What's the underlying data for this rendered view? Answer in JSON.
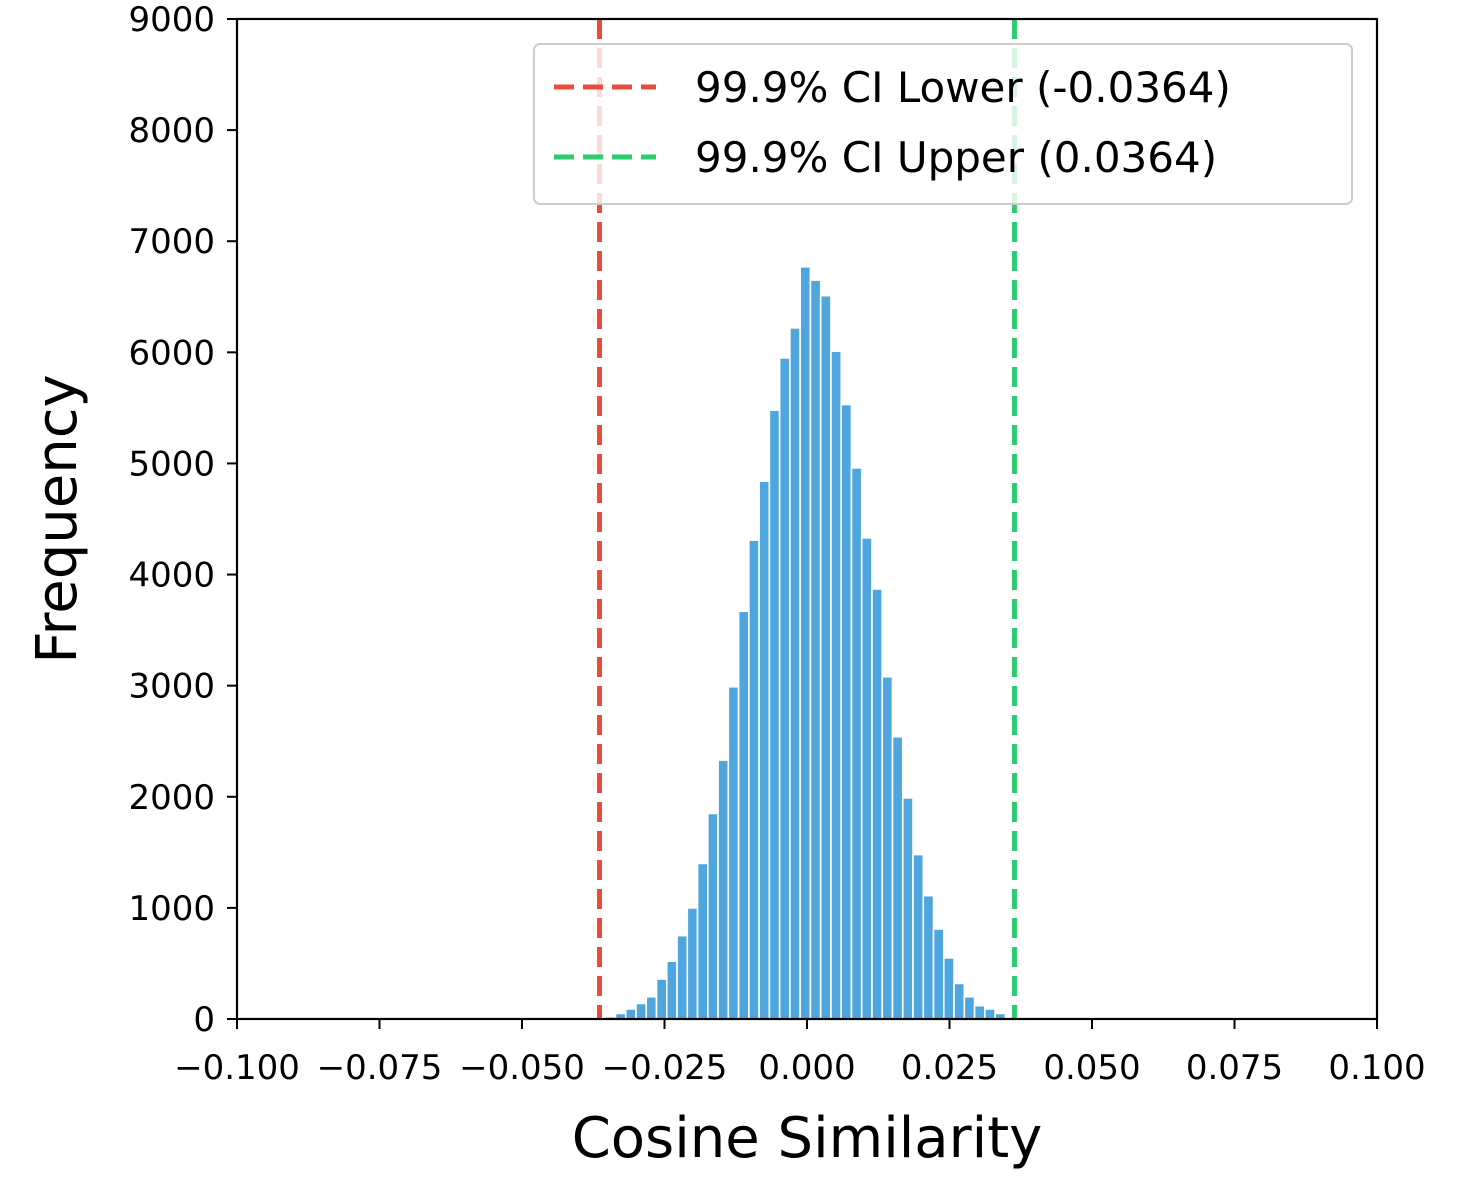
{
  "chart_data": {
    "type": "bar",
    "xlabel": "Cosine Similarity",
    "ylabel": "Frequency",
    "xlim": [
      -0.1,
      0.1
    ],
    "ylim": [
      0,
      9000
    ],
    "x_ticks": [
      -0.1,
      -0.075,
      -0.05,
      -0.025,
      0.0,
      0.025,
      0.05,
      0.075,
      0.1
    ],
    "x_tick_labels": [
      "−0.100",
      "−0.075",
      "−0.050",
      "−0.025",
      "0.000",
      "0.025",
      "0.050",
      "0.075",
      "0.100"
    ],
    "y_ticks": [
      0,
      1000,
      2000,
      3000,
      4000,
      5000,
      6000,
      7000,
      8000,
      9000
    ],
    "y_tick_labels": [
      "0",
      "1000",
      "2000",
      "3000",
      "4000",
      "5000",
      "6000",
      "7000",
      "8000",
      "9000"
    ],
    "grid": false,
    "bar_color": "#4fa6df",
    "bins": [
      -0.0345,
      -0.0327,
      -0.0309,
      -0.0291,
      -0.0273,
      -0.0255,
      -0.0237,
      -0.0219,
      -0.0201,
      -0.0183,
      -0.0165,
      -0.0147,
      -0.0129,
      -0.0111,
      -0.0093,
      -0.0075,
      -0.0057,
      -0.0039,
      -0.0021,
      -0.0003,
      0.0015,
      0.0033,
      0.0051,
      0.0069,
      0.0087,
      0.0105,
      0.0123,
      0.0141,
      0.0159,
      0.0177,
      0.0195,
      0.0213,
      0.0231,
      0.0249,
      0.0267,
      0.0285,
      0.0303,
      0.0321,
      0.0339
    ],
    "bin_width": 0.0018,
    "values": [
      20,
      50,
      90,
      140,
      200,
      360,
      520,
      750,
      1000,
      1400,
      1850,
      2330,
      2990,
      3670,
      4310,
      4840,
      5480,
      5950,
      6220,
      6770,
      6650,
      6510,
      6010,
      5530,
      4960,
      4330,
      3870,
      3080,
      2540,
      1990,
      1480,
      1110,
      810,
      550,
      320,
      200,
      120,
      90,
      50
    ],
    "vlines": [
      {
        "x": -0.0364,
        "color": "#e74c3c",
        "label": "99.9% CI Lower (-0.0364)"
      },
      {
        "x": 0.0364,
        "color": "#2ecc71",
        "label": "99.9% CI Upper (0.0364)"
      }
    ],
    "legend_position": "top-right"
  }
}
